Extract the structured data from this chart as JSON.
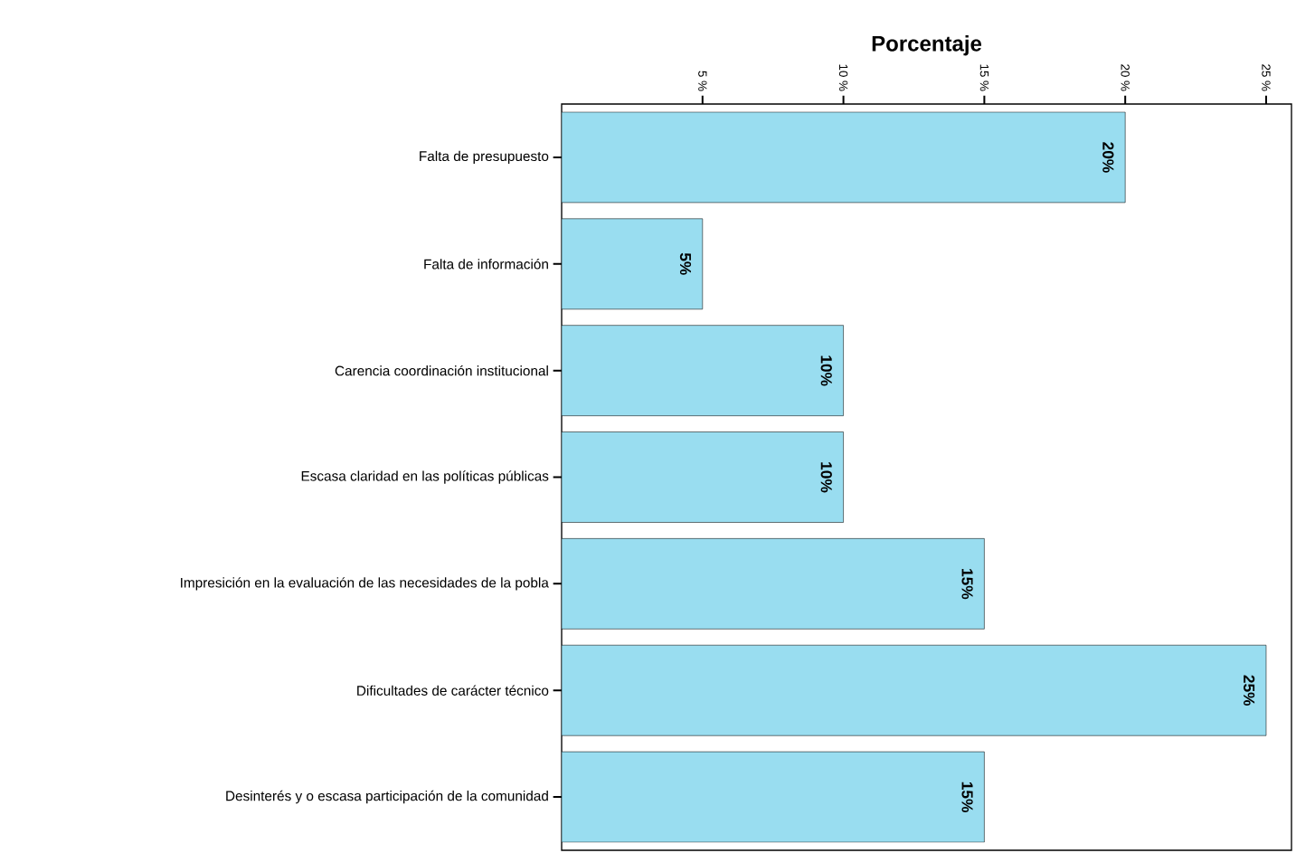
{
  "chart_data": {
    "type": "bar",
    "orientation": "horizontal",
    "xlabel": "Porcentaje",
    "categories": [
      "Falta de presupuesto",
      "Falta de información",
      "Carencia coordinación institucional",
      "Escasa claridad en las políticas públicas",
      "Impresición  en la evaluación de las necesidades de la pobla",
      "Dificultades de carácter técnico",
      "Desinterés y o escasa participación de la comunidad"
    ],
    "values": [
      20,
      5,
      10,
      10,
      15,
      25,
      15
    ],
    "value_labels": [
      "20%",
      "5%",
      "10%",
      "10%",
      "15%",
      "25%",
      "15%"
    ],
    "color": "#99ddf0",
    "xlim": [
      0,
      25.9
    ],
    "xticks": [
      {
        "value": 5,
        "label": "5 %"
      },
      {
        "value": 10,
        "label": "10 %"
      },
      {
        "value": 15,
        "label": "15 %"
      },
      {
        "value": 20,
        "label": "20 %"
      },
      {
        "value": 25,
        "label": "25 %"
      }
    ],
    "grid": false
  }
}
